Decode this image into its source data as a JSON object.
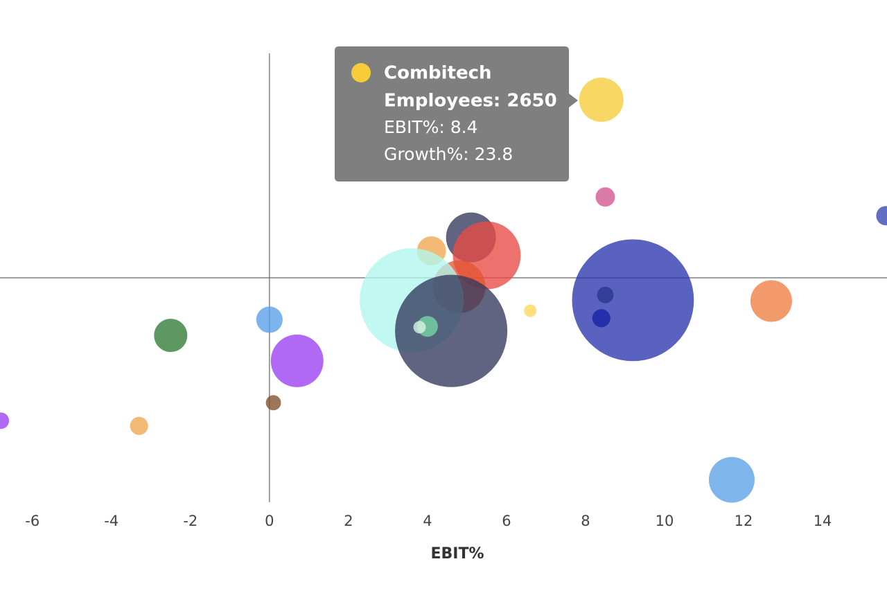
{
  "chart_data": {
    "type": "bubble",
    "x_label": "EBIT%",
    "xlim": [
      -6.82,
      15.63
    ],
    "xticks": [
      -6,
      -4,
      -2,
      0,
      2,
      4,
      6,
      8,
      10,
      12,
      14
    ],
    "ylim": [
      -30,
      30
    ],
    "x": [
      8.4,
      8.5,
      15.6,
      5.1,
      5.5,
      4.1,
      4.8,
      3.6,
      4.6,
      4.0,
      3.8,
      6.6,
      9.2,
      8.5,
      8.4,
      12.7,
      11.7,
      -2.5,
      0.0,
      0.7,
      0.1,
      -3.3,
      -6.8
    ],
    "y": [
      23.8,
      10.8,
      8.3,
      5.4,
      3.0,
      3.6,
      -1.2,
      -3.0,
      -7.1,
      -6.5,
      -6.6,
      -4.4,
      -3.0,
      -2.3,
      -5.4,
      -3.1,
      -27.0,
      -7.7,
      -5.6,
      -11.1,
      -16.7,
      -19.8,
      -19.1
    ],
    "size": [
      2650,
      507,
      500,
      3350,
      6200,
      1140,
      3740,
      14560,
      17000,
      580,
      210,
      210,
      20000,
      370,
      440,
      2330,
      2820,
      1490,
      940,
      3740,
      310,
      440,
      370
    ],
    "colors": [
      "#f6cc3a",
      "#d0548d",
      "#3545b0",
      "#33395e",
      "#e84a45",
      "#f0a64e",
      "#e2552f",
      "#b0f7ee",
      "#33395e",
      "#77d9a8",
      "#d8f5e6",
      "#f8d85a",
      "#2a37ad",
      "#2a3590",
      "#1520a8",
      "#ef7d40",
      "#5aa0e6",
      "#2f7a35",
      "#5a9fe8",
      "#9a3df2",
      "#80502a",
      "#f0a64e",
      "#9a3df2"
    ],
    "tooltip": {
      "point": 0,
      "name": "Combitech",
      "lines": [
        "Employees: 2650",
        "EBIT%: 8.4",
        "Growth%: 23.8"
      ]
    }
  }
}
